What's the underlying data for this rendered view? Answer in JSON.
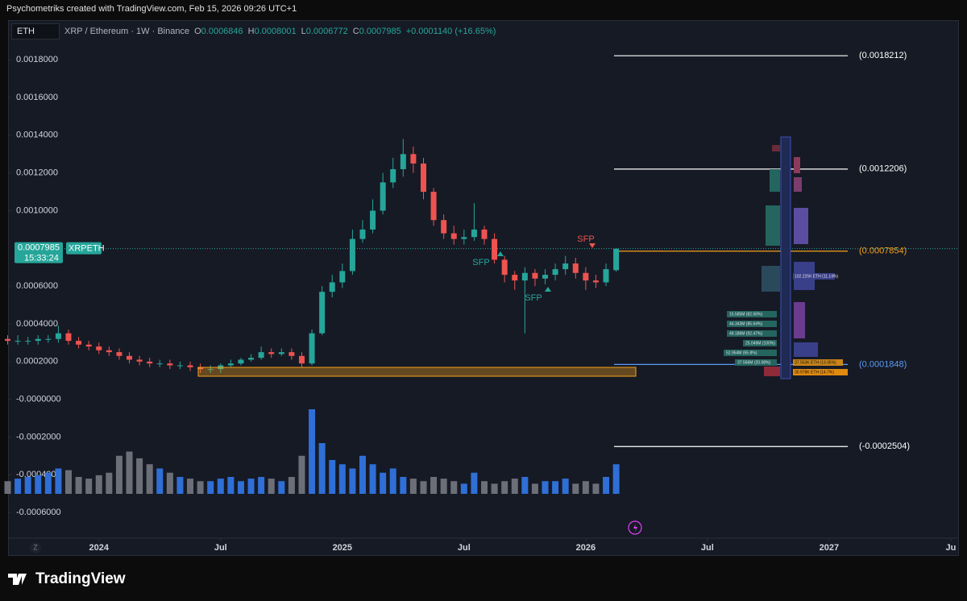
{
  "header": {
    "credit": "Psychometriks created with TradingView.com, Feb 15, 2026 09:26 UTC+1",
    "symbol_box": "ETH",
    "symbol": "XRP / Ethereum · 1W · Binance",
    "ohlc": [
      {
        "key": "O",
        "value": 0.0006846
      },
      {
        "key": "H",
        "value": 0.0008001
      },
      {
        "key": "L",
        "value": 0.0006772
      },
      {
        "key": "C",
        "value": 0.0007985
      }
    ],
    "change": "+0.0001140 (+16.65%)"
  },
  "chart_data": {
    "type": "candlestick",
    "x": [
      -4.5,
      -4,
      -3.5,
      -3,
      -2.5,
      -2,
      -1.5,
      -1,
      -0.5,
      0,
      0.5,
      1,
      1.5,
      2,
      2.5,
      3,
      3.5,
      4,
      4.5,
      5,
      5.5,
      6,
      6.5,
      7,
      7.5,
      8,
      8.5,
      9,
      9.5,
      10,
      10.5,
      11,
      11.5,
      12,
      12.5,
      13,
      13.5,
      14,
      14.5,
      15,
      15.5,
      16,
      16.5,
      17,
      17.5,
      18,
      18.5,
      19,
      19.5,
      20,
      20.5,
      21,
      21.5,
      22,
      22.5,
      23,
      23.5,
      24,
      24.5,
      25,
      25.5
    ],
    "open": [
      0.00032,
      0.00031,
      0.00031,
      0.00031,
      0.00032,
      0.00032,
      0.00035,
      0.00031,
      0.00029,
      0.00028,
      0.00026,
      0.00025,
      0.00023,
      0.00021,
      0.0002,
      0.00019,
      0.00019,
      0.00018,
      0.00018,
      0.00017,
      0.00016,
      0.00016,
      0.00018,
      0.00019,
      0.00021,
      0.00022,
      0.00025,
      0.00024,
      0.00025,
      0.00023,
      0.00019,
      0.00035,
      0.00057,
      0.00062,
      0.00068,
      0.00085,
      0.0009,
      0.001,
      0.00115,
      0.00122,
      0.0013,
      0.00125,
      0.0011,
      0.00095,
      0.00088,
      0.00085,
      0.00086,
      0.0009,
      0.00085,
      0.00074,
      0.00066,
      0.00063,
      0.00067,
      0.00064,
      0.00066,
      0.00069,
      0.00072,
      0.00067,
      0.00063,
      0.00062,
      0.0006846
    ],
    "high": [
      0.00034,
      0.00034,
      0.00033,
      0.00034,
      0.00034,
      0.00039,
      0.00037,
      0.00033,
      0.00031,
      0.0003,
      0.00028,
      0.00027,
      0.00025,
      0.00023,
      0.00022,
      0.00021,
      0.00021,
      0.0002,
      0.0002,
      0.00019,
      0.00018,
      0.00019,
      0.00021,
      0.00022,
      0.00024,
      0.00028,
      0.00027,
      0.00027,
      0.00027,
      0.00025,
      0.00037,
      0.0006,
      0.00066,
      0.00072,
      0.0009,
      0.00095,
      0.00106,
      0.0012,
      0.00128,
      0.00138,
      0.00134,
      0.00128,
      0.00112,
      0.00098,
      0.00092,
      0.0009,
      0.00104,
      0.00092,
      0.00088,
      0.00076,
      0.00068,
      0.0007,
      0.00069,
      0.00069,
      0.00072,
      0.00076,
      0.00075,
      0.0007,
      0.00066,
      0.00072,
      0.0008001
    ],
    "low": [
      0.00029,
      0.00029,
      0.00029,
      0.00029,
      0.0003,
      0.0003,
      0.00029,
      0.00027,
      0.00026,
      0.00024,
      0.00023,
      0.00021,
      0.00019,
      0.00018,
      0.00017,
      0.00017,
      0.00016,
      0.00016,
      0.00015,
      0.00014,
      0.00014,
      0.00014,
      0.00017,
      0.00018,
      0.0002,
      0.00021,
      0.00022,
      0.00023,
      0.00021,
      0.00017,
      0.00018,
      0.00034,
      0.00054,
      0.00059,
      0.00066,
      0.00083,
      0.00088,
      0.00098,
      0.00112,
      0.00118,
      0.0012,
      0.00106,
      0.00092,
      0.00085,
      0.00082,
      0.00082,
      0.00084,
      0.00082,
      0.00072,
      0.00062,
      0.00058,
      0.00035,
      0.0006,
      0.00061,
      0.00063,
      0.00066,
      0.00064,
      0.00058,
      0.00059,
      0.0006,
      0.0006772
    ],
    "close": [
      0.00031,
      0.00031,
      0.00031,
      0.00032,
      0.00032,
      0.00035,
      0.00031,
      0.00029,
      0.00028,
      0.00026,
      0.00025,
      0.00023,
      0.00021,
      0.0002,
      0.00019,
      0.00019,
      0.00018,
      0.00018,
      0.00017,
      0.00016,
      0.00016,
      0.00018,
      0.00019,
      0.00021,
      0.00022,
      0.00025,
      0.00024,
      0.00025,
      0.00023,
      0.00019,
      0.00035,
      0.00057,
      0.00062,
      0.00068,
      0.00085,
      0.0009,
      0.001,
      0.00115,
      0.00122,
      0.0013,
      0.00125,
      0.0011,
      0.00095,
      0.00088,
      0.00085,
      0.00086,
      0.0009,
      0.00085,
      0.00074,
      0.00066,
      0.00063,
      0.00067,
      0.00064,
      0.00066,
      0.00069,
      0.00072,
      0.00067,
      0.00063,
      0.00062,
      0.00069,
      0.0007985
    ],
    "volume": [
      15,
      18,
      20,
      22,
      25,
      30,
      28,
      20,
      18,
      22,
      25,
      45,
      50,
      42,
      35,
      30,
      25,
      20,
      18,
      15,
      15,
      18,
      20,
      15,
      18,
      20,
      18,
      15,
      20,
      45,
      100,
      60,
      40,
      35,
      30,
      45,
      35,
      25,
      30,
      20,
      18,
      15,
      20,
      18,
      15,
      12,
      25,
      15,
      12,
      15,
      18,
      20,
      12,
      15,
      15,
      18,
      12,
      15,
      12,
      20,
      35
    ],
    "up_color": "#26a69a",
    "down_color": "#ef5350",
    "volume_up_color": "#2f6fd6",
    "volume_down_color": "#6d6f78",
    "ylim": [
      -0.00083,
      0.00201
    ],
    "yticks": [
      {
        "value": 0.0018,
        "label": "0.0018000"
      },
      {
        "value": 0.0016,
        "label": "0.0016000"
      },
      {
        "value": 0.0014,
        "label": "0.0014000"
      },
      {
        "value": 0.0012,
        "label": "0.0012000"
      },
      {
        "value": 0.001,
        "label": "0.0010000"
      },
      {
        "value": 0.0006,
        "label": "0.0006000"
      },
      {
        "value": 0.0004,
        "label": "0.0004000"
      },
      {
        "value": 0.0002,
        "label": "0.0002000"
      },
      {
        "value": 0,
        "label": "-0.0000000"
      },
      {
        "value": -0.0002,
        "label": "-0.0002000"
      },
      {
        "value": -0.0004,
        "label": "-0.0004000"
      },
      {
        "value": -0.0006,
        "label": "-0.0006000"
      }
    ],
    "xlim": [
      -4.48,
      42.4
    ],
    "xticks": [
      {
        "value": 0,
        "label": "2024"
      },
      {
        "value": 6,
        "label": "Jul"
      },
      {
        "value": 12,
        "label": "2025"
      },
      {
        "value": 18,
        "label": "Jul"
      },
      {
        "value": 24,
        "label": "2026"
      },
      {
        "value": 30,
        "label": "Jul"
      },
      {
        "value": 36,
        "label": "2027"
      },
      {
        "value": 42,
        "label": "Ju"
      }
    ],
    "levels": [
      {
        "value": 0.0018212,
        "label": "(0.0018212)",
        "color": "#ffffff"
      },
      {
        "value": 0.0012206,
        "label": "(0.0012206)",
        "color": "#ffffff"
      },
      {
        "value": 0.0007854,
        "label": "(0.0007854)",
        "color": "#f7a21b"
      },
      {
        "value": 0.0001848,
        "label": "(0.0001848)",
        "color": "#5b9cf6"
      },
      {
        "value": -0.0002504,
        "label": "(-0.0002504)",
        "color": "#ffffff"
      }
    ],
    "last_price": {
      "value": 0.0007985,
      "countdown": "15:33:24",
      "ticker": "XRPETH"
    },
    "annotations": [
      "SFP",
      "SFP",
      "SFP"
    ],
    "profile_labels": [
      "15.585M (82.56%)",
      "44.343M (85.64%)",
      "49.186M (92.47%)",
      "25.049M (100%)",
      "52.954M (65.8%)",
      "37.566M (20.08%)",
      "102.225K ETH (11.14%)",
      "37.553K ETH (13.35%)",
      "30.978K ETH (14.7%)"
    ]
  },
  "time_axis_button": "Z",
  "footer": {
    "logo": "TradingView"
  }
}
